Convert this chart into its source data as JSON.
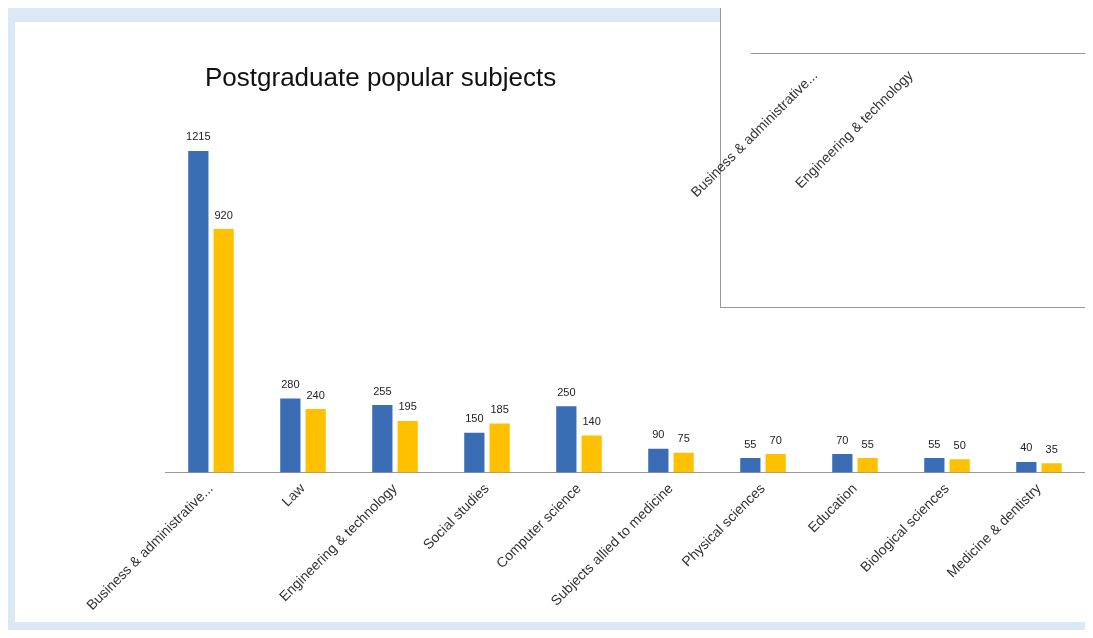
{
  "chart_data": [
    {
      "type": "bar",
      "title": "Postgraduate popular subjects",
      "categories": [
        "Business & administrative...",
        "Law",
        "Engineering & technology",
        "Social studies",
        "Computer science",
        "Subjects allied to medicine",
        "Physical sciences",
        "Education",
        "Biological sciences",
        "Medicine & dentistry"
      ],
      "series": [
        {
          "color": "#3a6db3",
          "values": [
            1215,
            280,
            255,
            150,
            250,
            90,
            55,
            70,
            55,
            40
          ]
        },
        {
          "color": "#ffc000",
          "values": [
            920,
            240,
            195,
            185,
            140,
            75,
            70,
            55,
            50,
            35
          ]
        }
      ],
      "data_labels": true,
      "legend": false,
      "grid": false
    },
    {
      "type": "other",
      "annotations": [
        "Business & administrative...",
        "Engineering & technology"
      ]
    }
  ]
}
